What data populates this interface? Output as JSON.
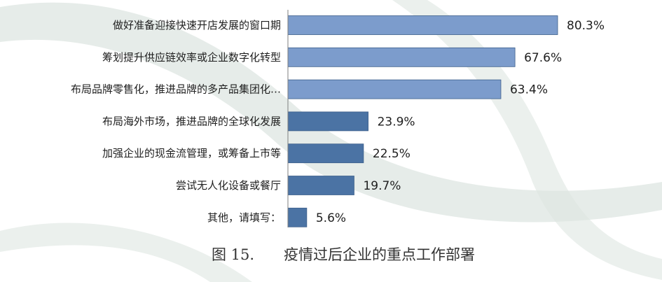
{
  "chart_data": {
    "type": "bar",
    "orientation": "horizontal",
    "categories": [
      "做好准备迎接快速开店发展的窗口期",
      "筹划提升供应链效率或企业数字化转型",
      "布局品牌零售化，推进品牌的多产品集团化…",
      "布局海外市场，推进品牌的全球化发展",
      "加强企业的现金流管理，或筹备上市等",
      "尝试无人化设备或餐厅",
      "其他，请填写："
    ],
    "values": [
      80.3,
      67.6,
      63.4,
      23.9,
      22.5,
      19.7,
      5.6
    ],
    "value_labels": [
      "80.3%",
      "67.6%",
      "63.4%",
      "23.9%",
      "22.5%",
      "19.7%",
      "5.6%"
    ],
    "xlim": [
      0,
      100
    ],
    "grid": false,
    "legend": "none",
    "title": "图 15.　　疫情过后企业的重点工作部署",
    "xlabel": "",
    "ylabel": ""
  },
  "colors": {
    "bar_light": "#7c9ccc",
    "bar_dark": "#4b73a4",
    "bar_stroke": "#3d5f8a",
    "axis": "#7f7f7f",
    "watermark": "#dde6e1"
  }
}
